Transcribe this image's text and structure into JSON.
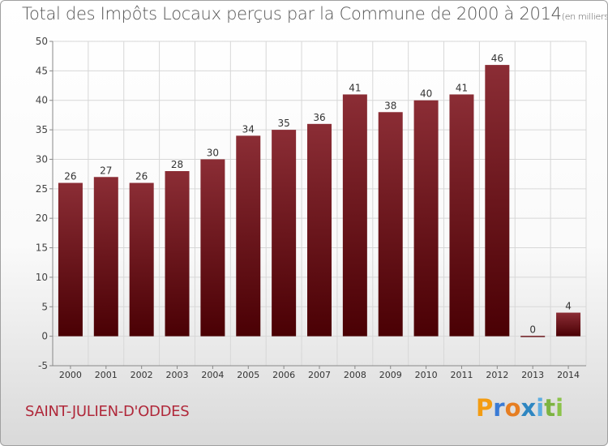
{
  "title": "Total des Impôts Locaux perçus par la Commune de 2000 à 2014",
  "title_unit": "(en milliers d'€)",
  "commune": "SAINT-JULIEN-D'ODDES",
  "logo": {
    "text": "Proxiti",
    "letters": [
      "P",
      "r",
      "o",
      "x",
      "i",
      "t",
      "i"
    ],
    "colors": [
      "#f39c12",
      "#3a7bd5",
      "#e67e22",
      "#2e86c1",
      "#5dade2",
      "#7cb342",
      "#8bc34a"
    ]
  },
  "colors": {
    "bar_top": "#8b2d35",
    "bar_bottom": "#4a0004",
    "title": "#555555",
    "commune": "#b0283a",
    "grid": "#d7d7d7",
    "axis": "#888888"
  },
  "chart_data": {
    "type": "bar",
    "title": "Total des Impôts Locaux perçus par la Commune de 2000 à 2014",
    "xlabel": "",
    "ylabel": "",
    "categories": [
      "2000",
      "2001",
      "2002",
      "2003",
      "2004",
      "2005",
      "2006",
      "2007",
      "2008",
      "2009",
      "2010",
      "2011",
      "2012",
      "2013",
      "2014"
    ],
    "values": [
      26,
      27,
      26,
      28,
      30,
      34,
      35,
      36,
      41,
      38,
      40,
      41,
      46,
      0,
      4
    ],
    "ylim": [
      -5,
      50
    ],
    "yticks": [
      -5,
      0,
      5,
      10,
      15,
      20,
      25,
      30,
      35,
      40,
      45,
      50
    ],
    "grid": true
  }
}
